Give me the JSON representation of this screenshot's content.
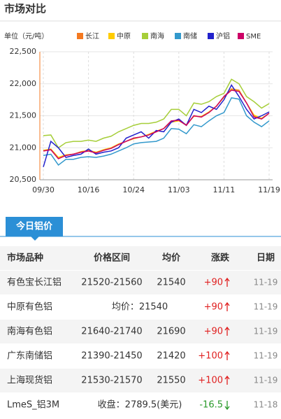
{
  "header": {
    "title": "市场对比"
  },
  "chart_data": {
    "type": "line",
    "y_label": "单位（元/吨）",
    "categories": [
      "09/30",
      null,
      null,
      null,
      null,
      null,
      "10/16",
      null,
      null,
      null,
      null,
      null,
      "10/24",
      null,
      null,
      null,
      null,
      null,
      "11/03",
      null,
      null,
      null,
      null,
      null,
      "11/11",
      null,
      null,
      null,
      null,
      null,
      "11/19"
    ],
    "ylim": [
      20500,
      22500
    ],
    "yticks": [
      {
        "value": 20500,
        "label": "20,500"
      },
      {
        "value": 21000,
        "label": "21,000"
      },
      {
        "value": 21500,
        "label": "21,500"
      },
      {
        "value": 22000,
        "label": "22,000"
      },
      {
        "value": 22500,
        "label": "22,500"
      }
    ],
    "grid": true,
    "series": [
      {
        "name": "长江",
        "color": "#f47920",
        "values": [
          20950,
          20970,
          20830,
          20880,
          20900,
          20930,
          20950,
          20920,
          20960,
          20990,
          21050,
          21100,
          21150,
          21170,
          21200,
          21250,
          21300,
          21420,
          21430,
          21350,
          21500,
          21480,
          21550,
          21650,
          21800,
          21920,
          21900,
          21700,
          21500,
          21450,
          21540
        ]
      },
      {
        "name": "中原",
        "color": "#ffcc00",
        "values": [
          20960,
          20980,
          20850,
          20890,
          20900,
          20940,
          20960,
          20930,
          20970,
          21000,
          21060,
          21100,
          21140,
          21170,
          21210,
          21260,
          21300,
          21400,
          21420,
          21360,
          21490,
          21490,
          21560,
          21650,
          21790,
          21910,
          21890,
          21700,
          21510,
          21460,
          21540
        ]
      },
      {
        "name": "南海",
        "color": "#a6ce39",
        "values": [
          21190,
          21200,
          21000,
          21080,
          21100,
          21100,
          21120,
          21100,
          21150,
          21180,
          21250,
          21300,
          21350,
          21380,
          21380,
          21400,
          21450,
          21600,
          21600,
          21500,
          21700,
          21680,
          21720,
          21800,
          21850,
          22070,
          22000,
          21800,
          21720,
          21620,
          21690
        ]
      },
      {
        "name": "南储",
        "color": "#3399cc",
        "values": [
          20880,
          20900,
          20730,
          20820,
          20820,
          20850,
          20860,
          20850,
          20870,
          20900,
          20950,
          21000,
          21060,
          21080,
          21090,
          21100,
          21150,
          21300,
          21290,
          21220,
          21360,
          21330,
          21420,
          21500,
          21550,
          21780,
          21760,
          21500,
          21400,
          21330,
          21420
        ]
      },
      {
        "name": "沪铝",
        "color": "#2222cc",
        "values": [
          20700,
          21100,
          21000,
          20850,
          20880,
          20900,
          20980,
          20900,
          20930,
          20950,
          21000,
          21150,
          21200,
          21250,
          21150,
          21270,
          21250,
          21400,
          21450,
          21350,
          21600,
          21550,
          21650,
          21600,
          21750,
          21980,
          21800,
          21600,
          21450,
          21500,
          21560
        ]
      },
      {
        "name": "SME",
        "color": "#cc0066",
        "values": [
          20950,
          20970,
          20830,
          20880,
          20900,
          20930,
          20950,
          20920,
          20960,
          20990,
          21050,
          21100,
          21150,
          21170,
          21200,
          21250,
          21300,
          21420,
          21430,
          21350,
          21500,
          21480,
          21550,
          21650,
          21800,
          21900,
          21880,
          21700,
          21480,
          21450,
          21540
        ]
      }
    ]
  },
  "table": {
    "tab": "今日铝价",
    "columns": [
      "市场品种",
      "价格区间",
      "均价",
      "涨跌",
      "日期"
    ],
    "rows": [
      {
        "name": "有色宝长江铝",
        "range": "21520-21560",
        "avg": "21540",
        "change": "+90",
        "date": "11-19"
      },
      {
        "name": "中原有色铝",
        "price": "均价：21540",
        "change": "+90",
        "date": "11-19"
      },
      {
        "name": "南海有色铝",
        "range": "21640-21740",
        "avg": "21690",
        "change": "+90",
        "date": "11-19"
      },
      {
        "name": "广东南储铝",
        "range": "21390-21450",
        "avg": "21420",
        "change": "+100",
        "date": "11-19"
      },
      {
        "name": "上海现货铝",
        "range": "21530-21570",
        "avg": "21550",
        "change": "+100",
        "date": "11-19"
      },
      {
        "name": "LmeS_铝3M",
        "price": "收盘：2789.5(美元)",
        "change": "-16.5",
        "date": "11-18"
      }
    ]
  }
}
